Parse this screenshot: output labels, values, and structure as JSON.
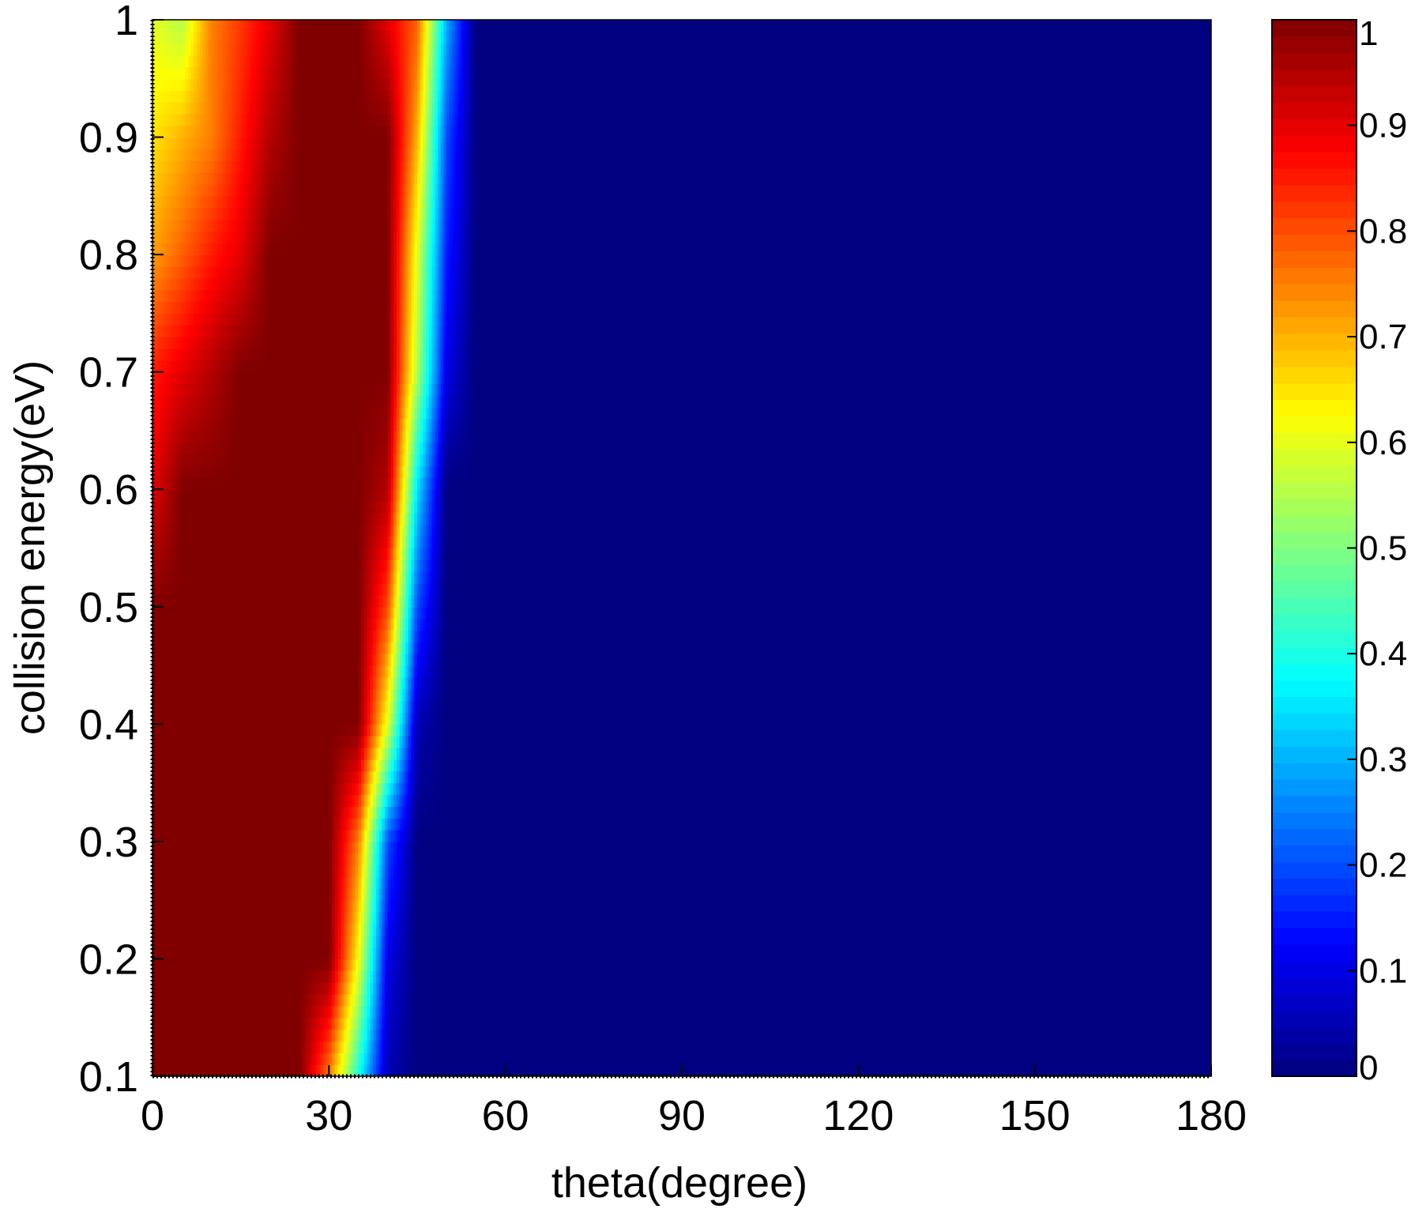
{
  "chart_data": {
    "type": "heatmap",
    "title": "",
    "xlabel": "theta(degree)",
    "ylabel": "collision energy(eV)",
    "xlim": [
      0,
      180
    ],
    "ylim": [
      0.1,
      1
    ],
    "x_ticks": [
      "0",
      "30",
      "60",
      "90",
      "120",
      "150",
      "180"
    ],
    "y_ticks": [
      "0.1",
      "0.2",
      "0.3",
      "0.4",
      "0.5",
      "0.6",
      "0.7",
      "0.8",
      "0.9",
      "1"
    ],
    "colorbar": {
      "colormap": "jet",
      "range": [
        0,
        1
      ],
      "ticks": [
        "0",
        "0.1",
        "0.2",
        "0.3",
        "0.4",
        "0.5",
        "0.6",
        "0.7",
        "0.8",
        "0.9",
        "1"
      ]
    },
    "background_value": 0,
    "energies": [
      0.1,
      0.2,
      0.3,
      0.4,
      0.5,
      0.6,
      0.7,
      0.8,
      0.9,
      1.0
    ],
    "theta_profile_nodes": [
      0,
      5,
      10,
      15,
      20,
      25,
      30,
      35,
      40,
      45,
      50,
      55
    ],
    "values": [
      [
        1,
        1,
        1,
        1,
        1,
        1,
        0.75,
        0.4,
        0.05,
        0,
        0,
        0
      ],
      [
        1,
        1,
        1,
        1,
        1,
        1,
        1,
        0.62,
        0.1,
        0,
        0,
        0
      ],
      [
        1,
        1,
        1,
        1,
        1,
        1,
        1,
        0.75,
        0.2,
        0,
        0,
        0
      ],
      [
        1,
        1,
        1,
        1,
        1,
        1,
        1,
        1,
        0.6,
        0.05,
        0,
        0
      ],
      [
        1,
        1,
        1,
        1,
        1,
        1,
        1,
        1,
        0.8,
        0.2,
        0,
        0
      ],
      [
        0.9,
        1,
        1,
        1,
        1,
        1,
        1,
        1,
        0.95,
        0.35,
        0,
        0
      ],
      [
        0.85,
        0.9,
        0.95,
        1,
        1,
        1,
        1,
        1,
        1,
        0.55,
        0.1,
        0
      ],
      [
        0.72,
        0.78,
        0.85,
        0.9,
        1,
        1,
        1,
        1,
        1,
        0.6,
        0.15,
        0
      ],
      [
        0.65,
        0.7,
        0.75,
        0.85,
        0.95,
        1,
        1,
        1,
        1,
        0.7,
        0.2,
        0
      ],
      [
        0.6,
        0.55,
        0.75,
        0.82,
        0.9,
        1,
        1,
        1,
        0.9,
        0.78,
        0.3,
        0
      ]
    ]
  }
}
